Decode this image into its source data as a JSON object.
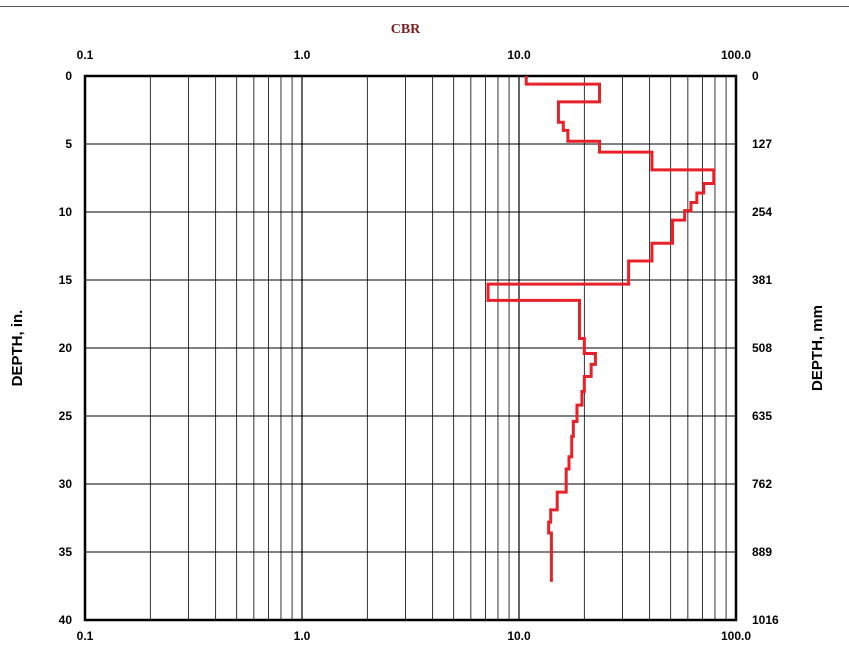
{
  "chart_data": {
    "type": "line",
    "title": "CBR",
    "xlabel": "CBR",
    "ylabel_left": "DEPTH, in.",
    "ylabel_right": "DEPTH, mm",
    "x_scale": "log",
    "xlim": [
      0.1,
      100.0
    ],
    "ylim": [
      0,
      40
    ],
    "y_inverted": true,
    "x_tick_labels": [
      "0.1",
      "1.0",
      "10.0",
      "100.0"
    ],
    "y_ticks_left": [
      "0",
      "5",
      "10",
      "15",
      "20",
      "25",
      "30",
      "35",
      "40"
    ],
    "y_ticks_right": [
      "0",
      "127",
      "254",
      "381",
      "508",
      "635",
      "762",
      "889",
      "1016"
    ],
    "grid": true,
    "colors": {
      "series": "#e8202a",
      "title": "#7a1f1f",
      "axis": "#000000"
    },
    "series": [
      {
        "name": "",
        "style": "step",
        "points": [
          [
            10.8,
            0
          ],
          [
            10.8,
            0.6
          ],
          [
            23.5,
            0.6
          ],
          [
            23.5,
            1.9
          ],
          [
            15.2,
            1.9
          ],
          [
            15.2,
            3.4
          ],
          [
            16.0,
            3.4
          ],
          [
            16.0,
            4.0
          ],
          [
            16.8,
            4.0
          ],
          [
            16.8,
            4.8
          ],
          [
            23.5,
            4.8
          ],
          [
            23.5,
            5.6
          ],
          [
            41.0,
            5.6
          ],
          [
            41.0,
            6.9
          ],
          [
            79.0,
            6.9
          ],
          [
            79.0,
            7.9
          ],
          [
            71.0,
            7.9
          ],
          [
            71.0,
            8.6
          ],
          [
            66.0,
            8.6
          ],
          [
            66.0,
            9.3
          ],
          [
            62.0,
            9.3
          ],
          [
            62.0,
            9.9
          ],
          [
            58.0,
            9.9
          ],
          [
            58.0,
            10.6
          ],
          [
            51.0,
            10.6
          ],
          [
            51.0,
            12.3
          ],
          [
            41.0,
            12.3
          ],
          [
            41.0,
            13.6
          ],
          [
            32.0,
            13.6
          ],
          [
            32.0,
            15.3
          ],
          [
            7.2,
            15.3
          ],
          [
            7.2,
            16.5
          ],
          [
            19.0,
            16.5
          ],
          [
            19.0,
            19.3
          ],
          [
            20.0,
            19.3
          ],
          [
            20.0,
            20.4
          ],
          [
            22.5,
            20.4
          ],
          [
            22.5,
            21.2
          ],
          [
            21.5,
            21.2
          ],
          [
            21.5,
            22.1
          ],
          [
            20.0,
            22.1
          ],
          [
            20.0,
            23.2
          ],
          [
            19.5,
            23.2
          ],
          [
            19.5,
            24.2
          ],
          [
            18.5,
            24.2
          ],
          [
            18.5,
            25.4
          ],
          [
            17.8,
            25.4
          ],
          [
            17.8,
            26.5
          ],
          [
            17.5,
            26.5
          ],
          [
            17.5,
            28.0
          ],
          [
            17.0,
            28.0
          ],
          [
            17.0,
            28.9
          ],
          [
            16.5,
            28.9
          ],
          [
            16.5,
            30.6
          ],
          [
            15.0,
            30.6
          ],
          [
            15.0,
            31.9
          ],
          [
            14.0,
            31.9
          ],
          [
            14.0,
            32.8
          ],
          [
            13.7,
            32.8
          ],
          [
            13.7,
            33.6
          ],
          [
            14.1,
            33.6
          ],
          [
            14.1,
            37.2
          ]
        ]
      }
    ]
  }
}
